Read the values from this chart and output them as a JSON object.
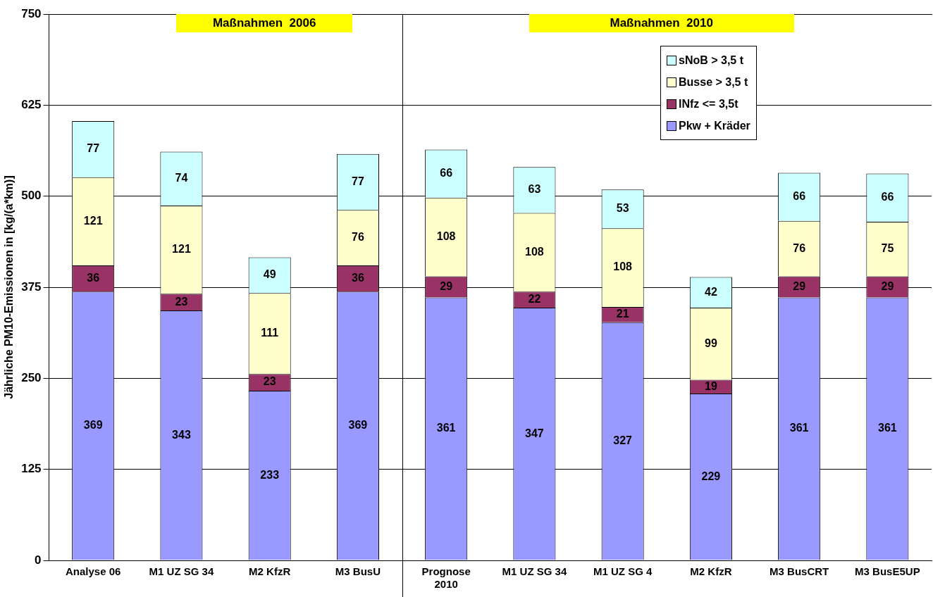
{
  "chart_data": {
    "type": "bar",
    "stacked": true,
    "ylabel": "Jährliche PM10-Emissionen in [kg/(a*km)]",
    "categories": [
      "Analyse 06",
      "M1 UZ SG 34",
      "M2 KfzR",
      "M3 BusU",
      "Prognose 2010",
      "M1 UZ SG 34",
      "M1 UZ SG 4",
      "M2 KfzR",
      "M3 BusCRT",
      "M3 BusE5UP"
    ],
    "series": [
      {
        "name": "Pkw + Kräder",
        "color": "#9999ff",
        "values": [
          369,
          343,
          233,
          369,
          361,
          347,
          327,
          229,
          361,
          361
        ]
      },
      {
        "name": "lNfz <= 3,5t",
        "color": "#993366",
        "values": [
          36,
          23,
          23,
          36,
          29,
          22,
          21,
          19,
          29,
          29
        ]
      },
      {
        "name": "Busse > 3,5 t",
        "color": "#ffffcc",
        "values": [
          121,
          121,
          111,
          76,
          108,
          108,
          108,
          99,
          76,
          75
        ]
      },
      {
        "name": "sNoB > 3,5 t",
        "color": "#ccffff",
        "values": [
          77,
          74,
          49,
          77,
          66,
          63,
          53,
          42,
          66,
          66
        ]
      }
    ],
    "annotations": [
      "Maßnahmen  2006",
      "Maßnahmen  2010"
    ],
    "ylim": [
      0,
      750
    ],
    "yticks": [
      0,
      125,
      250,
      375,
      500,
      625,
      750
    ],
    "grid": "y",
    "data_labels": true,
    "legend": "top right"
  }
}
